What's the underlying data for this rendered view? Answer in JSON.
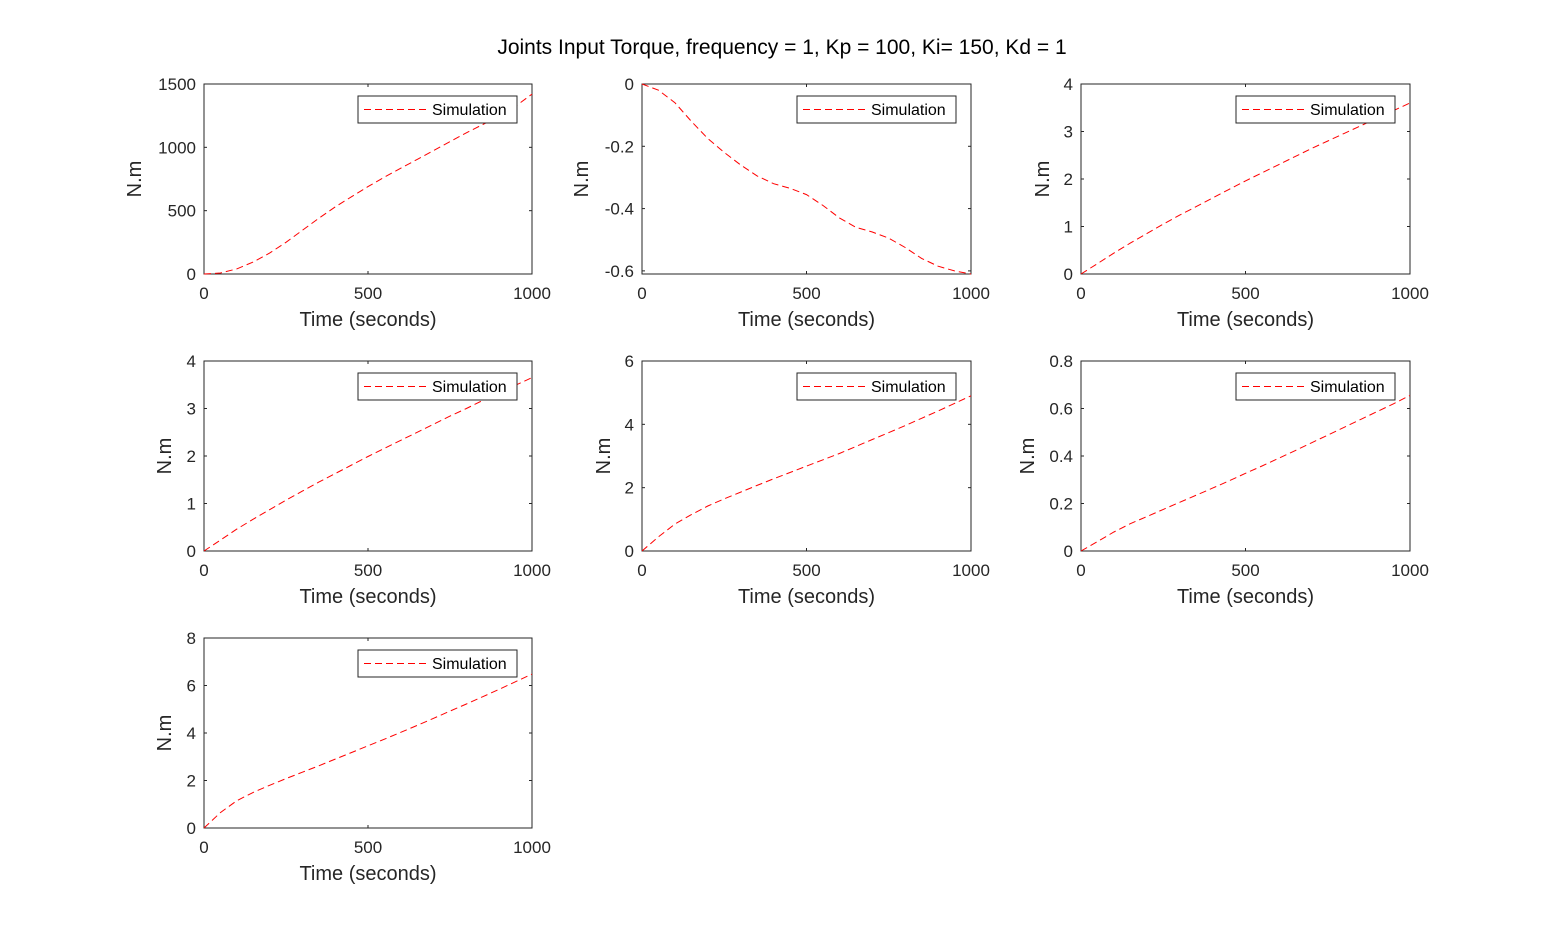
{
  "figure_title": "Joints Input Torque, frequency = 1, Kp = 100, Ki= 150, Kd = 1",
  "line_color": "#ff0000",
  "chart_data": [
    {
      "type": "line",
      "xlabel": "Time (seconds)",
      "ylabel": "N.m",
      "xlim": [
        0,
        1000
      ],
      "ylim": [
        0,
        1500
      ],
      "xticks": [
        0,
        500,
        1000
      ],
      "yticks": [
        0,
        500,
        1000,
        1500
      ],
      "xtick_labels": [
        "0",
        "500",
        "1000"
      ],
      "ytick_labels": [
        "0",
        "500",
        "1000",
        "1500"
      ],
      "legend_position": "top-right",
      "series": [
        {
          "name": "Simulation",
          "style": "dashed",
          "x": [
            0,
            50,
            100,
            150,
            200,
            250,
            300,
            350,
            400,
            450,
            500,
            550,
            600,
            650,
            700,
            750,
            800,
            850,
            900,
            950,
            1000
          ],
          "y": [
            0,
            8,
            40,
            95,
            165,
            250,
            345,
            440,
            530,
            610,
            690,
            765,
            835,
            905,
            975,
            1045,
            1115,
            1180,
            1245,
            1325,
            1420
          ]
        }
      ]
    },
    {
      "type": "line",
      "xlabel": "Time (seconds)",
      "ylabel": "N.m",
      "xlim": [
        0,
        1000
      ],
      "ylim": [
        -0.61,
        0
      ],
      "xticks": [
        0,
        500,
        1000
      ],
      "yticks": [
        0,
        -0.2,
        -0.4,
        -0.6
      ],
      "xtick_labels": [
        "0",
        "500",
        "1000"
      ],
      "ytick_labels": [
        "0",
        "-0.2",
        "-0.4",
        "-0.6"
      ],
      "legend_position": "top-right",
      "series": [
        {
          "name": "Simulation",
          "style": "dashed",
          "x": [
            0,
            50,
            100,
            150,
            200,
            250,
            300,
            350,
            400,
            450,
            500,
            550,
            600,
            650,
            700,
            750,
            800,
            850,
            900,
            950,
            1000
          ],
          "y": [
            0,
            -0.02,
            -0.06,
            -0.12,
            -0.175,
            -0.22,
            -0.26,
            -0.295,
            -0.32,
            -0.335,
            -0.355,
            -0.39,
            -0.43,
            -0.46,
            -0.475,
            -0.495,
            -0.525,
            -0.56,
            -0.585,
            -0.6,
            -0.61
          ]
        }
      ]
    },
    {
      "type": "line",
      "xlabel": "Time (seconds)",
      "ylabel": "N.m",
      "xlim": [
        0,
        1000
      ],
      "ylim": [
        0,
        4
      ],
      "xticks": [
        0,
        500,
        1000
      ],
      "yticks": [
        0,
        1,
        2,
        3,
        4
      ],
      "xtick_labels": [
        "0",
        "500",
        "1000"
      ],
      "ytick_labels": [
        "0",
        "1",
        "2",
        "3",
        "4"
      ],
      "legend_position": "top-right",
      "series": [
        {
          "name": "Simulation",
          "style": "dashed",
          "x": [
            0,
            50,
            100,
            150,
            200,
            250,
            300,
            350,
            400,
            450,
            500,
            550,
            600,
            650,
            700,
            750,
            800,
            850,
            900,
            950,
            1000
          ],
          "y": [
            0,
            0.22,
            0.44,
            0.65,
            0.85,
            1.05,
            1.24,
            1.42,
            1.6,
            1.78,
            1.96,
            2.13,
            2.3,
            2.47,
            2.64,
            2.8,
            2.96,
            3.12,
            3.28,
            3.44,
            3.6
          ]
        }
      ]
    },
    {
      "type": "line",
      "xlabel": "Time (seconds)",
      "ylabel": "N.m",
      "xlim": [
        0,
        1000
      ],
      "ylim": [
        0,
        4
      ],
      "xticks": [
        0,
        500,
        1000
      ],
      "yticks": [
        0,
        1,
        2,
        3,
        4
      ],
      "xtick_labels": [
        "0",
        "500",
        "1000"
      ],
      "ytick_labels": [
        "0",
        "1",
        "2",
        "3",
        "4"
      ],
      "legend_position": "top-right",
      "series": [
        {
          "name": "Simulation",
          "style": "dashed",
          "x": [
            0,
            50,
            100,
            150,
            200,
            250,
            300,
            350,
            400,
            450,
            500,
            550,
            600,
            650,
            700,
            750,
            800,
            850,
            900,
            950,
            1000
          ],
          "y": [
            0,
            0.23,
            0.46,
            0.67,
            0.87,
            1.07,
            1.26,
            1.45,
            1.63,
            1.81,
            1.99,
            2.16,
            2.33,
            2.5,
            2.67,
            2.84,
            3.0,
            3.17,
            3.33,
            3.49,
            3.65
          ]
        }
      ]
    },
    {
      "type": "line",
      "xlabel": "Time (seconds)",
      "ylabel": "N.m",
      "xlim": [
        0,
        1000
      ],
      "ylim": [
        0,
        6
      ],
      "xticks": [
        0,
        500,
        1000
      ],
      "yticks": [
        0,
        2,
        4,
        6
      ],
      "xtick_labels": [
        "0",
        "500",
        "1000"
      ],
      "ytick_labels": [
        "0",
        "2",
        "4",
        "6"
      ],
      "legend_position": "top-right",
      "series": [
        {
          "name": "Simulation",
          "style": "dashed",
          "x": [
            0,
            50,
            100,
            150,
            200,
            250,
            300,
            350,
            400,
            450,
            500,
            550,
            600,
            650,
            700,
            750,
            800,
            850,
            900,
            950,
            1000
          ],
          "y": [
            0,
            0.45,
            0.85,
            1.15,
            1.42,
            1.65,
            1.86,
            2.07,
            2.28,
            2.48,
            2.68,
            2.88,
            3.08,
            3.3,
            3.52,
            3.74,
            3.96,
            4.19,
            4.42,
            4.66,
            4.9
          ]
        }
      ]
    },
    {
      "type": "line",
      "xlabel": "Time (seconds)",
      "ylabel": "N.m",
      "xlim": [
        0,
        1000
      ],
      "ylim": [
        0,
        0.8
      ],
      "xticks": [
        0,
        500,
        1000
      ],
      "yticks": [
        0,
        0.2,
        0.4,
        0.6,
        0.8
      ],
      "xtick_labels": [
        "0",
        "500",
        "1000"
      ],
      "ytick_labels": [
        "0",
        "0.2",
        "0.4",
        "0.6",
        "0.8"
      ],
      "legend_position": "top-right",
      "series": [
        {
          "name": "Simulation",
          "style": "dashed",
          "x": [
            0,
            50,
            100,
            150,
            200,
            250,
            300,
            350,
            400,
            450,
            500,
            550,
            600,
            650,
            700,
            750,
            800,
            850,
            900,
            950,
            1000
          ],
          "y": [
            0,
            0.04,
            0.08,
            0.115,
            0.145,
            0.175,
            0.205,
            0.235,
            0.265,
            0.295,
            0.327,
            0.358,
            0.39,
            0.422,
            0.455,
            0.488,
            0.521,
            0.554,
            0.587,
            0.62,
            0.655
          ]
        }
      ]
    },
    {
      "type": "line",
      "xlabel": "Time (seconds)",
      "ylabel": "N.m",
      "xlim": [
        0,
        1000
      ],
      "ylim": [
        0,
        8
      ],
      "xticks": [
        0,
        500,
        1000
      ],
      "yticks": [
        0,
        2,
        4,
        6,
        8
      ],
      "xtick_labels": [
        "0",
        "500",
        "1000"
      ],
      "ytick_labels": [
        "0",
        "2",
        "4",
        "6",
        "8"
      ],
      "legend_position": "top-right",
      "series": [
        {
          "name": "Simulation",
          "style": "dashed",
          "x": [
            0,
            50,
            100,
            150,
            200,
            250,
            300,
            350,
            400,
            450,
            500,
            550,
            600,
            650,
            700,
            750,
            800,
            850,
            900,
            950,
            1000
          ],
          "y": [
            0,
            0.65,
            1.15,
            1.5,
            1.8,
            2.08,
            2.35,
            2.62,
            2.9,
            3.18,
            3.46,
            3.74,
            4.03,
            4.32,
            4.62,
            4.92,
            5.22,
            5.53,
            5.84,
            6.16,
            6.48
          ]
        }
      ]
    }
  ]
}
